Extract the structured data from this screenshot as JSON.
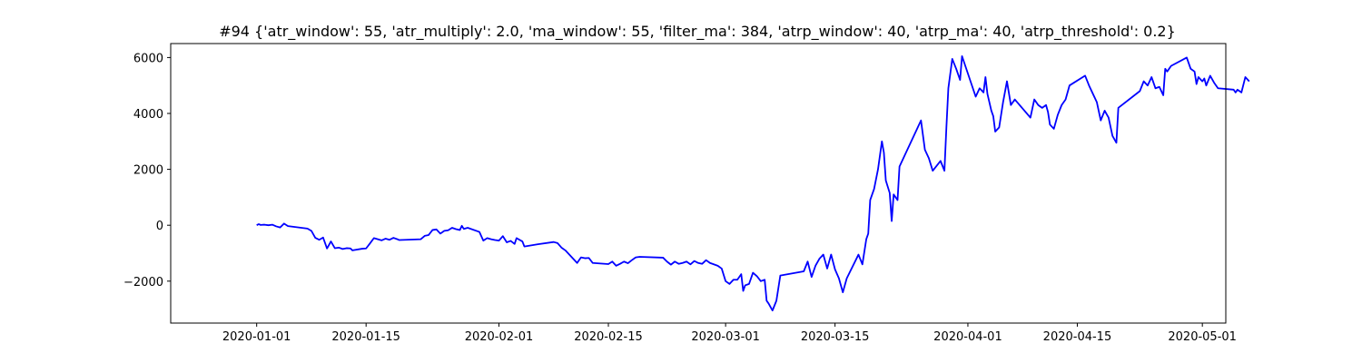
{
  "chart_data": {
    "type": "line",
    "title": "#94 {'atr_window': 55, 'atr_multiply': 2.0, 'ma_window': 55, 'filter_ma': 384, 'atrp_window': 40, 'atrp_ma': 40, 'atrp_threshold': 0.2}",
    "xlabel": "",
    "ylabel": "",
    "xlim": [
      "2019-12-21",
      "2020-05-04"
    ],
    "ylim": [
      -3500,
      6500
    ],
    "grid": false,
    "xticks": [
      "2020-01-01",
      "2020-01-15",
      "2020-02-01",
      "2020-02-15",
      "2020-03-01",
      "2020-03-15",
      "2020-04-01",
      "2020-04-15",
      "2020-05-01"
    ],
    "yticks": [
      -2000,
      0,
      2000,
      4000,
      6000
    ],
    "ytick_labels": [
      "−2000",
      "0",
      "2000",
      "4000",
      "6000"
    ],
    "series": [
      {
        "color": "#0000ff",
        "points": [
          [
            "2020-01-01",
            0
          ],
          [
            "2020-01-01 06:00",
            40
          ],
          [
            "2020-01-01 12:00",
            10
          ],
          [
            "2020-01-02",
            20
          ],
          [
            "2020-01-02 12:00",
            0
          ],
          [
            "2020-01-03",
            20
          ],
          [
            "2020-01-03 12:00",
            -40
          ],
          [
            "2020-01-04",
            -80
          ],
          [
            "2020-01-04 12:00",
            60
          ],
          [
            "2020-01-05",
            -30
          ],
          [
            "2020-01-07 12:00",
            -120
          ],
          [
            "2020-01-08",
            -200
          ],
          [
            "2020-01-08 12:00",
            -450
          ],
          [
            "2020-01-09",
            -520
          ],
          [
            "2020-01-09 12:00",
            -440
          ],
          [
            "2020-01-10",
            -830
          ],
          [
            "2020-01-10 12:00",
            -580
          ],
          [
            "2020-01-11",
            -820
          ],
          [
            "2020-01-11 12:00",
            -800
          ],
          [
            "2020-01-12",
            -850
          ],
          [
            "2020-01-12 12:00",
            -820
          ],
          [
            "2020-01-13",
            -830
          ],
          [
            "2020-01-13 06:00",
            -900
          ],
          [
            "2020-01-14 12:00",
            -840
          ],
          [
            "2020-01-15",
            -830
          ],
          [
            "2020-01-15 12:00",
            -650
          ],
          [
            "2020-01-16",
            -460
          ],
          [
            "2020-01-17",
            -540
          ],
          [
            "2020-01-17 12:00",
            -480
          ],
          [
            "2020-01-18",
            -520
          ],
          [
            "2020-01-18 12:00",
            -450
          ],
          [
            "2020-01-19",
            -500
          ],
          [
            "2020-01-19 06:00",
            -530
          ],
          [
            "2020-01-22",
            -500
          ],
          [
            "2020-01-22 12:00",
            -380
          ],
          [
            "2020-01-23",
            -350
          ],
          [
            "2020-01-23 12:00",
            -170
          ],
          [
            "2020-01-24",
            -150
          ],
          [
            "2020-01-24 12:00",
            -300
          ],
          [
            "2020-01-25",
            -200
          ],
          [
            "2020-01-25 12:00",
            -180
          ],
          [
            "2020-01-26",
            -90
          ],
          [
            "2020-01-26 12:00",
            -140
          ],
          [
            "2020-01-27",
            -170
          ],
          [
            "2020-01-27 06:00",
            -20
          ],
          [
            "2020-01-27 12:00",
            -130
          ],
          [
            "2020-01-28",
            -90
          ],
          [
            "2020-01-29 12:00",
            -240
          ],
          [
            "2020-01-30",
            -550
          ],
          [
            "2020-01-30 12:00",
            -460
          ],
          [
            "2020-01-31",
            -500
          ],
          [
            "2020-01-31 12:00",
            -530
          ],
          [
            "2020-02-01",
            -550
          ],
          [
            "2020-02-01 12:00",
            -390
          ],
          [
            "2020-02-02",
            -610
          ],
          [
            "2020-02-02 12:00",
            -560
          ],
          [
            "2020-02-03",
            -670
          ],
          [
            "2020-02-03 06:00",
            -460
          ],
          [
            "2020-02-04",
            -580
          ],
          [
            "2020-02-04 06:00",
            -760
          ],
          [
            "2020-02-06",
            -680
          ],
          [
            "2020-02-08",
            -600
          ],
          [
            "2020-02-08 12:00",
            -640
          ],
          [
            "2020-02-09",
            -800
          ],
          [
            "2020-02-09 12:00",
            -900
          ],
          [
            "2020-02-11",
            -1350
          ],
          [
            "2020-02-11 12:00",
            -1150
          ],
          [
            "2020-02-12",
            -1180
          ],
          [
            "2020-02-12 12:00",
            -1170
          ],
          [
            "2020-02-13",
            -1350
          ],
          [
            "2020-02-15",
            -1390
          ],
          [
            "2020-02-15 12:00",
            -1300
          ],
          [
            "2020-02-16",
            -1450
          ],
          [
            "2020-02-16 12:00",
            -1380
          ],
          [
            "2020-02-17",
            -1300
          ],
          [
            "2020-02-17 12:00",
            -1360
          ],
          [
            "2020-02-18",
            -1250
          ],
          [
            "2020-02-18 12:00",
            -1150
          ],
          [
            "2020-02-19",
            -1130
          ],
          [
            "2020-02-22",
            -1160
          ],
          [
            "2020-02-22 12:00",
            -1300
          ],
          [
            "2020-02-23",
            -1410
          ],
          [
            "2020-02-23 12:00",
            -1300
          ],
          [
            "2020-02-24",
            -1380
          ],
          [
            "2020-02-24 12:00",
            -1350
          ],
          [
            "2020-02-25",
            -1300
          ],
          [
            "2020-02-25 12:00",
            -1400
          ],
          [
            "2020-02-26",
            -1280
          ],
          [
            "2020-02-26 12:00",
            -1350
          ],
          [
            "2020-02-27",
            -1380
          ],
          [
            "2020-02-27 12:00",
            -1250
          ],
          [
            "2020-02-28",
            -1350
          ],
          [
            "2020-02-29",
            -1450
          ],
          [
            "2020-02-29 12:00",
            -1550
          ],
          [
            "2020-03-01",
            -2000
          ],
          [
            "2020-03-01 12:00",
            -2100
          ],
          [
            "2020-03-02",
            -1950
          ],
          [
            "2020-03-02 12:00",
            -1950
          ],
          [
            "2020-03-03",
            -1750
          ],
          [
            "2020-03-03 06:00",
            -2350
          ],
          [
            "2020-03-03 12:00",
            -2150
          ],
          [
            "2020-03-04",
            -2100
          ],
          [
            "2020-03-04 12:00",
            -1700
          ],
          [
            "2020-03-05",
            -1820
          ],
          [
            "2020-03-05 12:00",
            -2000
          ],
          [
            "2020-03-06",
            -1950
          ],
          [
            "2020-03-06 06:00",
            -2700
          ],
          [
            "2020-03-06 12:00",
            -2800
          ],
          [
            "2020-03-07",
            -3050
          ],
          [
            "2020-03-07 12:00",
            -2700
          ],
          [
            "2020-03-08",
            -1800
          ],
          [
            "2020-03-11",
            -1650
          ],
          [
            "2020-03-11 12:00",
            -1300
          ],
          [
            "2020-03-12",
            -1850
          ],
          [
            "2020-03-12 12:00",
            -1450
          ],
          [
            "2020-03-13",
            -1200
          ],
          [
            "2020-03-13 12:00",
            -1050
          ],
          [
            "2020-03-14",
            -1550
          ],
          [
            "2020-03-14 12:00",
            -1050
          ],
          [
            "2020-03-15",
            -1580
          ],
          [
            "2020-03-15 12:00",
            -1900
          ],
          [
            "2020-03-16",
            -2400
          ],
          [
            "2020-03-16 12:00",
            -1900
          ],
          [
            "2020-03-18",
            -1050
          ],
          [
            "2020-03-18 12:00",
            -1400
          ],
          [
            "2020-03-19",
            -500
          ],
          [
            "2020-03-19 06:00",
            -300
          ],
          [
            "2020-03-19 12:00",
            900
          ],
          [
            "2020-03-20",
            1300
          ],
          [
            "2020-03-20 12:00",
            2000
          ],
          [
            "2020-03-21",
            3000
          ],
          [
            "2020-03-21 06:00",
            2600
          ],
          [
            "2020-03-21 12:00",
            1600
          ],
          [
            "2020-03-22",
            1150
          ],
          [
            "2020-03-22 06:00",
            150
          ],
          [
            "2020-03-22 12:00",
            1100
          ],
          [
            "2020-03-23",
            900
          ],
          [
            "2020-03-23 06:00",
            2100
          ],
          [
            "2020-03-26",
            3750
          ],
          [
            "2020-03-26 12:00",
            2700
          ],
          [
            "2020-03-27",
            2400
          ],
          [
            "2020-03-27 12:00",
            1950
          ],
          [
            "2020-03-28 12:00",
            2300
          ],
          [
            "2020-03-29",
            1950
          ],
          [
            "2020-03-29 06:00",
            3500
          ],
          [
            "2020-03-29 12:00",
            4900
          ],
          [
            "2020-03-30",
            5950
          ],
          [
            "2020-03-30 12:00",
            5600
          ],
          [
            "2020-03-31",
            5200
          ],
          [
            "2020-03-31 06:00",
            6050
          ],
          [
            "2020-04-02",
            4600
          ],
          [
            "2020-04-02 12:00",
            4900
          ],
          [
            "2020-04-03",
            4750
          ],
          [
            "2020-04-03 06:00",
            5300
          ],
          [
            "2020-04-03 12:00",
            4700
          ],
          [
            "2020-04-04",
            4100
          ],
          [
            "2020-04-04 06:00",
            3900
          ],
          [
            "2020-04-04 12:00",
            3350
          ],
          [
            "2020-04-05",
            3500
          ],
          [
            "2020-04-05 06:00",
            3950
          ],
          [
            "2020-04-05 12:00",
            4400
          ],
          [
            "2020-04-06",
            5150
          ],
          [
            "2020-04-06 12:00",
            4300
          ],
          [
            "2020-04-07",
            4500
          ],
          [
            "2020-04-09",
            3850
          ],
          [
            "2020-04-09 12:00",
            4500
          ],
          [
            "2020-04-10",
            4300
          ],
          [
            "2020-04-10 12:00",
            4200
          ],
          [
            "2020-04-11",
            4300
          ],
          [
            "2020-04-11 06:00",
            4050
          ],
          [
            "2020-04-11 12:00",
            3600
          ],
          [
            "2020-04-12",
            3450
          ],
          [
            "2020-04-12 12:00",
            3950
          ],
          [
            "2020-04-13",
            4300
          ],
          [
            "2020-04-13 12:00",
            4500
          ],
          [
            "2020-04-14",
            5000
          ],
          [
            "2020-04-16",
            5350
          ],
          [
            "2020-04-16 12:00",
            5000
          ],
          [
            "2020-04-17",
            4700
          ],
          [
            "2020-04-17 12:00",
            4400
          ],
          [
            "2020-04-18",
            3750
          ],
          [
            "2020-04-18 12:00",
            4100
          ],
          [
            "2020-04-19",
            3850
          ],
          [
            "2020-04-19 12:00",
            3200
          ],
          [
            "2020-04-20",
            2950
          ],
          [
            "2020-04-20 06:00",
            4200
          ],
          [
            "2020-04-23",
            4800
          ],
          [
            "2020-04-23 12:00",
            5150
          ],
          [
            "2020-04-24",
            5000
          ],
          [
            "2020-04-24 12:00",
            5300
          ],
          [
            "2020-04-25",
            4900
          ],
          [
            "2020-04-25 12:00",
            4950
          ],
          [
            "2020-04-26",
            4650
          ],
          [
            "2020-04-26 06:00",
            5600
          ],
          [
            "2020-04-26 12:00",
            5500
          ],
          [
            "2020-04-27",
            5700
          ],
          [
            "2020-04-29",
            6000
          ],
          [
            "2020-04-29 12:00",
            5600
          ],
          [
            "2020-04-30",
            5500
          ],
          [
            "2020-04-30 06:00",
            5050
          ],
          [
            "2020-04-30 12:00",
            5300
          ],
          [
            "2020-05-01",
            5150
          ],
          [
            "2020-05-01 06:00",
            5250
          ],
          [
            "2020-05-01 12:00",
            5000
          ],
          [
            "2020-05-02",
            5350
          ],
          [
            "2020-05-02 12:00",
            5100
          ],
          [
            "2020-05-03",
            4900
          ],
          [
            "2020-05-05",
            4850
          ],
          [
            "2020-05-05 06:00",
            4750
          ],
          [
            "2020-05-05 12:00",
            4850
          ],
          [
            "2020-05-06",
            4750
          ],
          [
            "2020-05-06 12:00",
            5300
          ],
          [
            "2020-05-07",
            5150
          ]
        ]
      }
    ]
  }
}
